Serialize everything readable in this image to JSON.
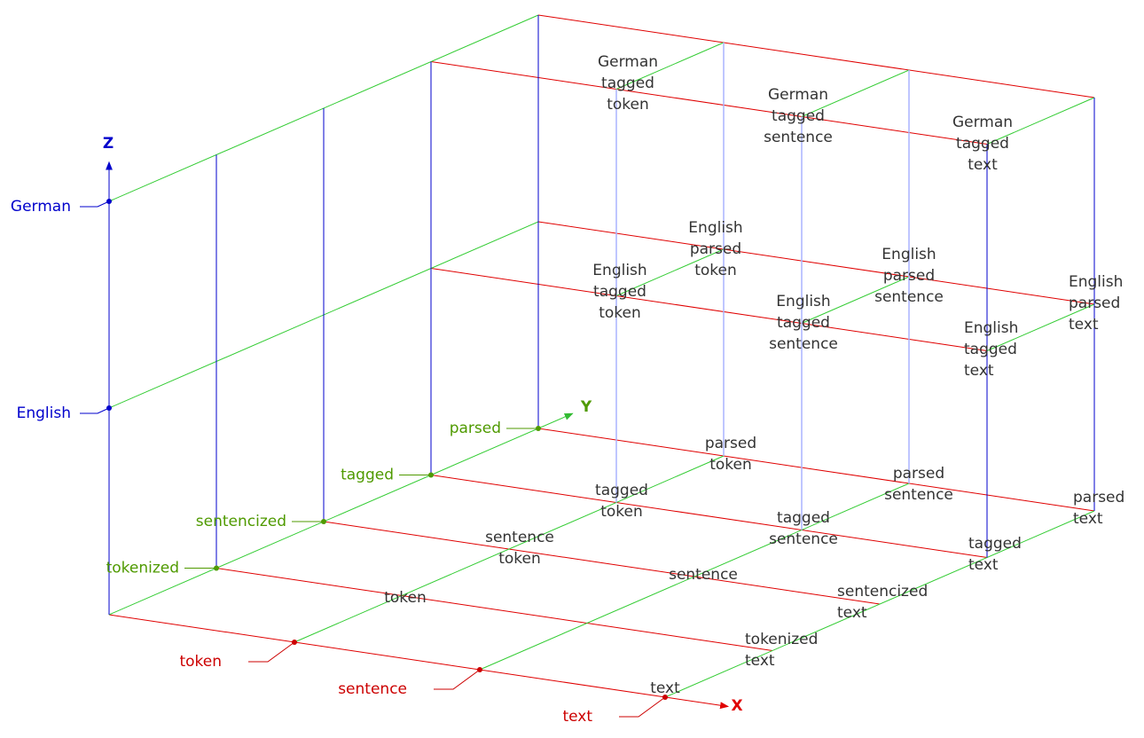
{
  "axes": {
    "x": {
      "label": "X",
      "ticks": [
        "token",
        "sentence",
        "text"
      ]
    },
    "y": {
      "label": "Y",
      "ticks": [
        "tokenized",
        "sentencized",
        "tagged",
        "parsed"
      ]
    },
    "z": {
      "label": "Z",
      "ticks": [
        "English",
        "German"
      ]
    }
  },
  "cells": [
    {
      "lines": [
        "token"
      ]
    },
    {
      "lines": [
        "sentence",
        "token"
      ]
    },
    {
      "lines": [
        "tagged",
        "token"
      ]
    },
    {
      "lines": [
        "parsed",
        "token"
      ]
    },
    {
      "lines": [
        "sentence"
      ]
    },
    {
      "lines": [
        "tagged",
        "sentence"
      ]
    },
    {
      "lines": [
        "parsed",
        "sentence"
      ]
    },
    {
      "lines": [
        "text"
      ]
    },
    {
      "lines": [
        "tokenized",
        "text"
      ]
    },
    {
      "lines": [
        "sentencized",
        "text"
      ]
    },
    {
      "lines": [
        "tagged",
        "text"
      ]
    },
    {
      "lines": [
        "parsed",
        "text"
      ]
    },
    {
      "lines": [
        "English",
        "tagged",
        "token"
      ]
    },
    {
      "lines": [
        "English",
        "parsed",
        "token"
      ]
    },
    {
      "lines": [
        "English",
        "tagged",
        "sentence"
      ]
    },
    {
      "lines": [
        "English",
        "parsed",
        "sentence"
      ]
    },
    {
      "lines": [
        "English",
        "tagged",
        "text"
      ]
    },
    {
      "lines": [
        "English",
        "parsed",
        "text"
      ]
    },
    {
      "lines": [
        "German",
        "tagged",
        "token"
      ]
    },
    {
      "lines": [
        "German",
        "tagged",
        "sentence"
      ]
    },
    {
      "lines": [
        "German",
        "tagged",
        "text"
      ]
    }
  ]
}
